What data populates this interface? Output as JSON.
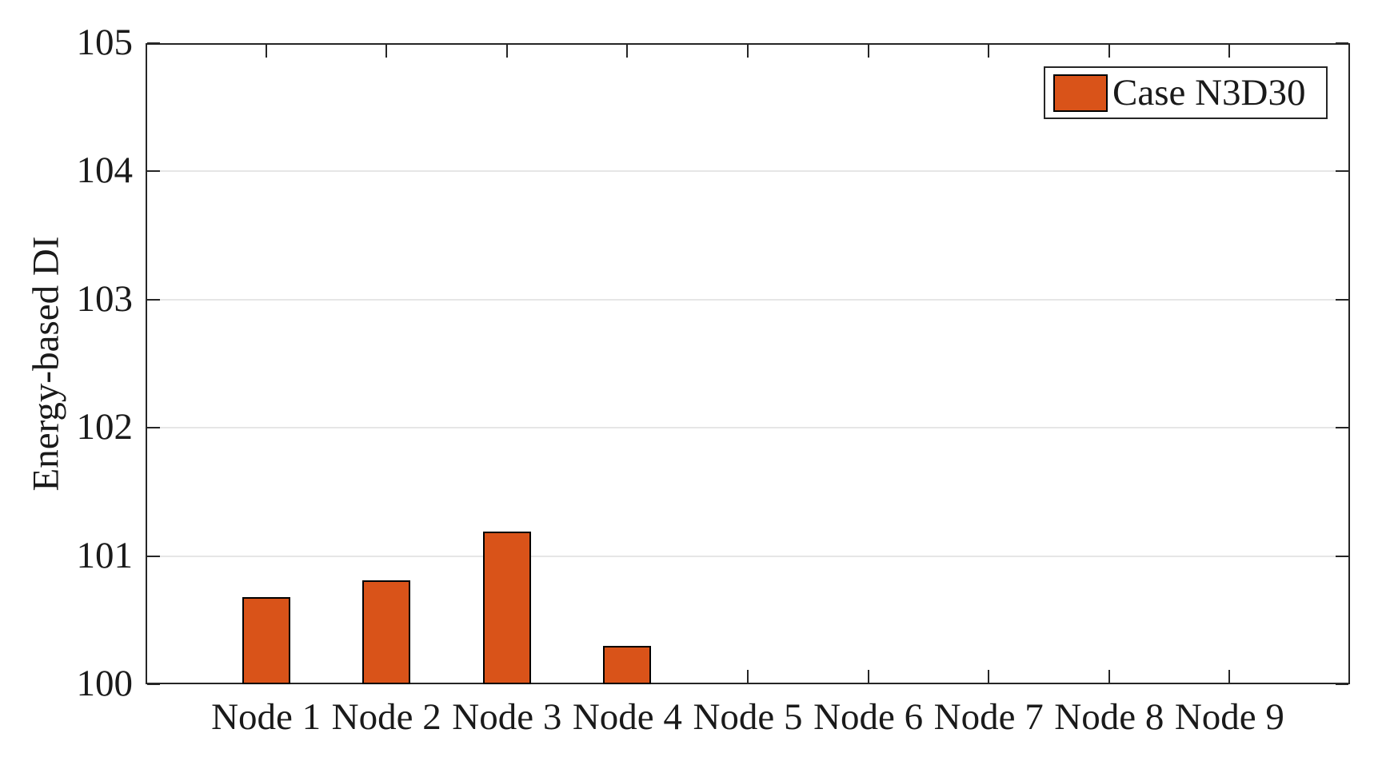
{
  "figure": {
    "background": "#ffffff",
    "axis_color": "#262626",
    "grid_color": "#e6e6e6",
    "text_color": "#1a1a1a"
  },
  "chart_data": {
    "type": "bar",
    "title": "",
    "xlabel": "",
    "ylabel": "Energy-based DI",
    "categories": [
      "Node 1",
      "Node 2",
      "Node 3",
      "Node 4",
      "Node 5",
      "Node 6",
      "Node 7",
      "Node 8",
      "Node 9"
    ],
    "values": [
      100.68,
      100.81,
      101.19,
      100.3,
      100,
      100,
      100,
      100,
      100
    ],
    "ylim": [
      100,
      105
    ],
    "yticks": [
      100,
      101,
      102,
      103,
      104,
      105
    ],
    "grid": "horizontal-only",
    "bar_width_ratio": 0.4,
    "bar_fill": "#d95319",
    "bar_edge": "#000000",
    "legend": {
      "position": "top-right",
      "entries": [
        {
          "label": "Case N3D30",
          "color": "#d95319"
        }
      ]
    }
  }
}
